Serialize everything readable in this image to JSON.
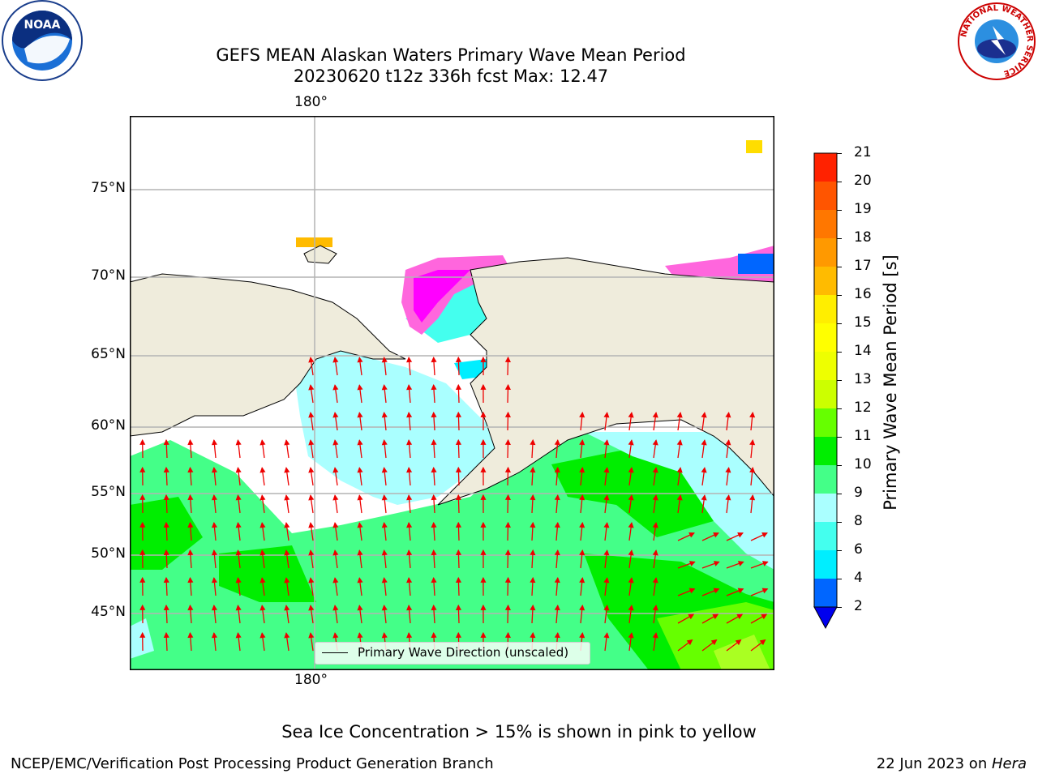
{
  "header": {
    "title_line1": "GEFS MEAN Alaskan Waters Primary Wave Mean Period",
    "title_line2": "20230620 t12z 336h fcst   Max: 12.47"
  },
  "logos": {
    "left": "noaa-logo",
    "right": "national-weather-service-logo",
    "noaa_text": "NOAA",
    "nws_ring_text": "NATIONAL WEATHER SERVICE"
  },
  "map": {
    "lat_labels": [
      "75°N",
      "70°N",
      "65°N",
      "60°N",
      "55°N",
      "50°N",
      "45°N"
    ],
    "lon_label_top": "180°",
    "lon_label_bottom": "180°",
    "legend_label": "Primary Wave Direction (unscaled)",
    "colors": {
      "land": "#efecdc",
      "gridline": "#b4b4b4",
      "arrow": "#ee0000",
      "coast": "#000000"
    }
  },
  "colorbar": {
    "label": "Primary Wave Mean Period [s]",
    "ticks": [
      "2",
      "4",
      "6",
      "8",
      "9",
      "10",
      "11",
      "12",
      "13",
      "14",
      "15",
      "16",
      "17",
      "18",
      "19",
      "20",
      "21"
    ],
    "colors": [
      "#0066ff",
      "#00eeff",
      "#44ffee",
      "#aaffff",
      "#44ff88",
      "#00ee00",
      "#66ff00",
      "#ccff00",
      "#eeff00",
      "#ffff00",
      "#ffee00",
      "#ffbb00",
      "#ff9900",
      "#ff7700",
      "#ff5500",
      "#ff2200"
    ],
    "extend_color": "#0000ee"
  },
  "footer": {
    "note": "Sea Ice Concentration > 15% is shown in pink to yellow",
    "org": "NCEP/EMC/Verification Post Processing Product Generation Branch",
    "date": "22 Jun 2023 on ",
    "host": "Hera"
  }
}
